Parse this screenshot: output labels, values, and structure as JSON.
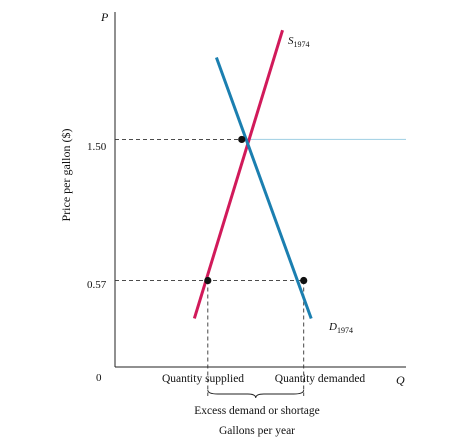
{
  "chart_data": {
    "type": "line",
    "y_axis": {
      "variable": "P",
      "label": "Price per gallon ($)",
      "ticks": [
        {
          "value": 0,
          "label": "0"
        },
        {
          "value": 0.57,
          "label": "0.57"
        },
        {
          "value": 1.5,
          "label": "1.50"
        }
      ]
    },
    "x_axis": {
      "variable": "Q",
      "label": "Gallons per year"
    },
    "series": [
      {
        "name": "S1974",
        "label_main": "S",
        "label_sub": "1974",
        "color": "#d11a5a",
        "x": [
          3.6,
          7.6
        ],
        "y": [
          0.32,
          2.22
        ]
      },
      {
        "name": "D1974",
        "label_main": "D",
        "label_sub": "1974",
        "color": "#1b7fb0",
        "x": [
          4.6,
          8.9
        ],
        "y": [
          2.04,
          0.32
        ]
      }
    ],
    "price_ceiling": {
      "y": 1.5,
      "color": "#a9d4e6"
    },
    "points": [
      {
        "name": "equilibrium",
        "x": 5.75,
        "y": 1.5
      },
      {
        "name": "quantity-supplied-point",
        "x": 4.21,
        "y": 0.57
      },
      {
        "name": "quantity-demanded-point",
        "x": 8.56,
        "y": 0.57
      }
    ],
    "quantity_labels": {
      "supplied": "Quantity supplied",
      "demanded": "Quantity demanded"
    },
    "brace_label": "Excess demand or shortage",
    "xlim": [
      0,
      13.2
    ],
    "ylim": [
      0,
      2.34
    ]
  }
}
